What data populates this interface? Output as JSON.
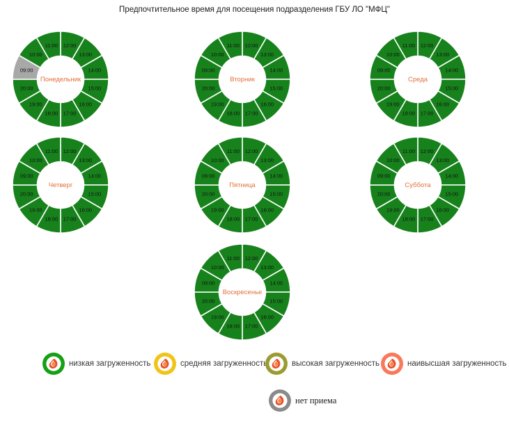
{
  "title": "Предпочтительное время для посещения подразделения ГБУ ЛО \"МФЦ\"",
  "chart_data": {
    "type": "pie",
    "title": "Предпочтительное время для посещения подразделения ГБУ ЛО \"МФЦ\"",
    "subtype": "donut-grid-by-weekday",
    "hours_clockwise_from_top": [
      "12:00",
      "13:00",
      "14:00",
      "15:00",
      "16:00",
      "17:00",
      "18:00",
      "19:00",
      "20:00",
      "09:00",
      "10:00",
      "11:00"
    ],
    "segment_colors": {
      "low": "#17821C",
      "medium": "#F0C419",
      "high": "#9B9B30",
      "highest": "#F8795C",
      "none": "#A8A8A8"
    },
    "day_label_color": "#E2703A",
    "days": [
      {
        "name": "Понедельник",
        "col": 0,
        "row": 0,
        "statuses": [
          "low",
          "low",
          "low",
          "low",
          "low",
          "low",
          "low",
          "low",
          "low",
          "none",
          "low",
          "low"
        ]
      },
      {
        "name": "Вторник",
        "col": 1,
        "row": 0,
        "statuses": [
          "low",
          "low",
          "low",
          "low",
          "low",
          "low",
          "low",
          "low",
          "low",
          "low",
          "low",
          "low"
        ]
      },
      {
        "name": "Среда",
        "col": 2,
        "row": 0,
        "statuses": [
          "low",
          "low",
          "low",
          "low",
          "low",
          "low",
          "low",
          "low",
          "low",
          "low",
          "low",
          "low"
        ]
      },
      {
        "name": "Четверг",
        "col": 0,
        "row": 1,
        "statuses": [
          "low",
          "low",
          "low",
          "low",
          "low",
          "low",
          "low",
          "low",
          "low",
          "low",
          "low",
          "low"
        ]
      },
      {
        "name": "Пятница",
        "col": 1,
        "row": 1,
        "statuses": [
          "low",
          "low",
          "low",
          "low",
          "low",
          "low",
          "low",
          "low",
          "low",
          "low",
          "low",
          "low"
        ]
      },
      {
        "name": "Суббота",
        "col": 2,
        "row": 1,
        "statuses": [
          "low",
          "low",
          "low",
          "low",
          "low",
          "low",
          "low",
          "low",
          "low",
          "low",
          "low",
          "low"
        ]
      },
      {
        "name": "Воскресенье",
        "col": 1,
        "row": 2,
        "statuses": [
          "low",
          "low",
          "low",
          "low",
          "low",
          "low",
          "low",
          "low",
          "low",
          "low",
          "low",
          "low"
        ]
      }
    ]
  },
  "legend": {
    "items": [
      {
        "id": "low",
        "label": "низкая загруженность",
        "color": "#15A015"
      },
      {
        "id": "medium",
        "label": "средняя загруженность",
        "color": "#F0C419"
      },
      {
        "id": "high",
        "label": "высокая загруженность",
        "color": "#9B9B30"
      },
      {
        "id": "highest",
        "label": "наивысшая загруженность",
        "color": "#F8795C"
      }
    ],
    "no_service_item": {
      "id": "none",
      "label": "нет приема",
      "color": "#8A8A8A"
    }
  }
}
